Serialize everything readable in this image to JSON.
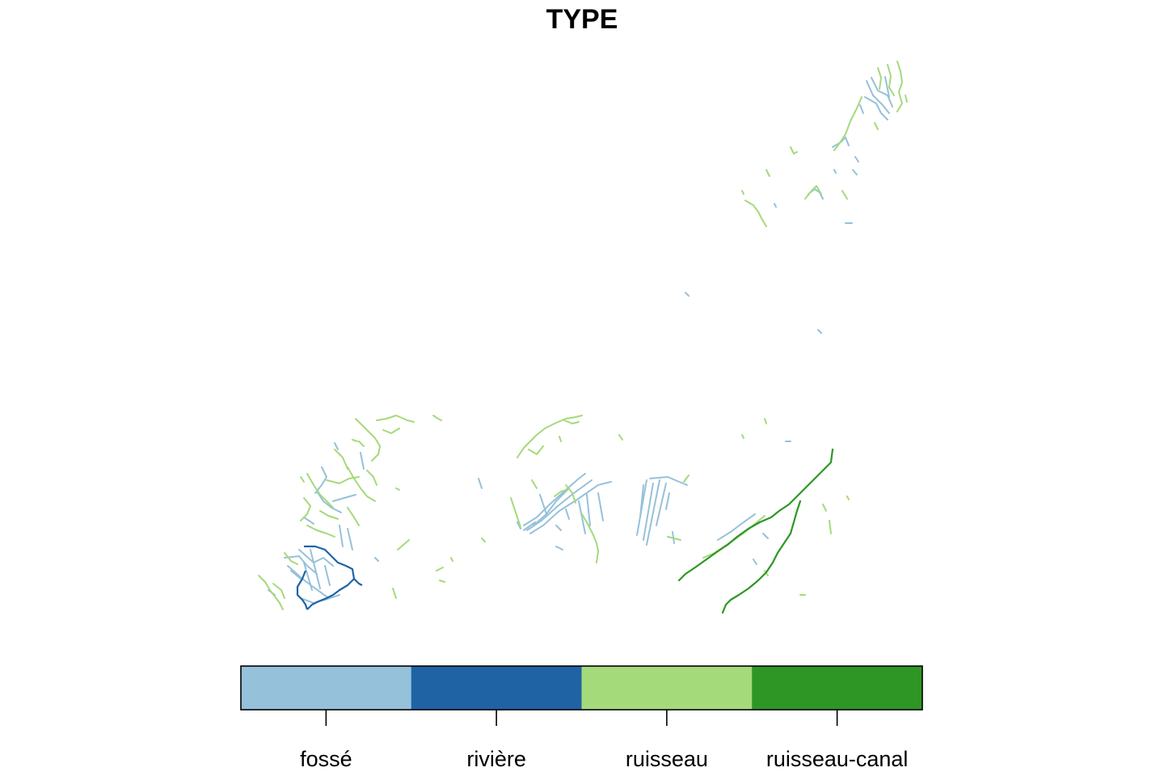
{
  "map": {
    "title": "TYPE",
    "legend": {
      "placement": "bottom",
      "categories": [
        {
          "label": "fossé",
          "color": "#96C1DA"
        },
        {
          "label": "rivière",
          "color": "#1F63A5"
        },
        {
          "label": "ruisseau",
          "color": "#A5DA7A"
        },
        {
          "label": "ruisseau-canal",
          "color": "#2E9624"
        }
      ]
    }
  }
}
